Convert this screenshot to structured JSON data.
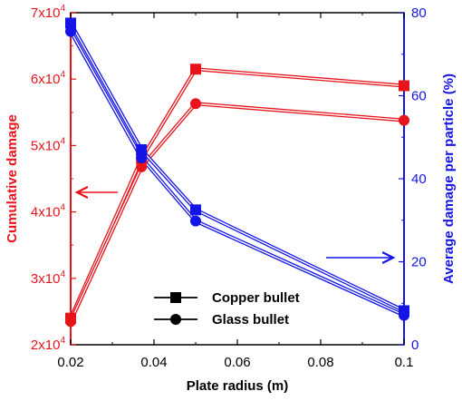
{
  "chart_data": {
    "type": "line",
    "x": [
      0.02,
      0.037,
      0.05,
      0.1
    ],
    "x_tick_labels": [
      "0.02",
      "0.04",
      "0.06",
      "0.08",
      "0.1"
    ],
    "x_tick_values": [
      0.02,
      0.04,
      0.06,
      0.08,
      0.1
    ],
    "xlabel": "Plate radius (m)",
    "xlim": [
      0.02,
      0.1
    ],
    "y_left": {
      "label": "Cumulative damage",
      "lim": [
        20000,
        70000
      ],
      "tick_values": [
        20000,
        30000,
        40000,
        50000,
        60000,
        70000
      ],
      "tick_labels": [
        {
          "base": "2x10",
          "exp": "4"
        },
        {
          "base": "3x10",
          "exp": "4"
        },
        {
          "base": "4x10",
          "exp": "4"
        },
        {
          "base": "5x10",
          "exp": "4"
        },
        {
          "base": "6x10",
          "exp": "4"
        },
        {
          "base": "7x10",
          "exp": "4"
        }
      ],
      "color": "#e8141b"
    },
    "y_right": {
      "label": "Average damage per particle (%)",
      "lim": [
        0,
        80
      ],
      "tick_values": [
        0,
        20,
        40,
        60,
        80
      ],
      "tick_labels": [
        "0",
        "20",
        "40",
        "60",
        "80"
      ],
      "color": "#1414e6"
    },
    "series": [
      {
        "name": "Copper bullet",
        "axis": "left",
        "marker": "square",
        "color": "#e8141b",
        "values": [
          24000,
          48000,
          61500,
          59000
        ]
      },
      {
        "name": "Glass bullet",
        "axis": "left",
        "marker": "circle",
        "color": "#e8141b",
        "values": [
          23500,
          46800,
          56300,
          53800
        ]
      },
      {
        "name": "Copper bullet",
        "axis": "right",
        "marker": "square",
        "color": "#1414e6",
        "values": [
          77.5,
          47,
          32.5,
          8.2
        ]
      },
      {
        "name": "Glass bullet",
        "axis": "right",
        "marker": "circle",
        "color": "#1414e6",
        "values": [
          75.5,
          45,
          29.8,
          7.1
        ]
      }
    ],
    "legend": {
      "placement": "bottom-center",
      "entries": [
        {
          "label": "Copper bullet",
          "marker": "square"
        },
        {
          "label": "Glass bullet",
          "marker": "circle"
        }
      ]
    },
    "annotations": [
      {
        "type": "arrow",
        "direction": "left",
        "color": "#e8141b",
        "target_axis": "left"
      },
      {
        "type": "arrow",
        "direction": "right",
        "color": "#1414e6",
        "target_axis": "right"
      }
    ],
    "grid": false
  }
}
